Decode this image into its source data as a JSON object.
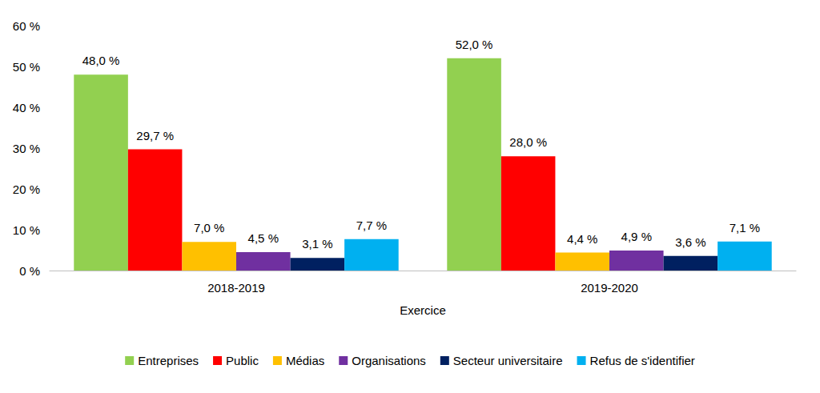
{
  "chart_data": {
    "type": "bar",
    "x_label": "Exercice",
    "categories": [
      "2018-2019",
      "2019-2020"
    ],
    "series": [
      {
        "name": "Entreprises",
        "color": "#92d050",
        "values": [
          48.0,
          52.0
        ],
        "value_labels": [
          "48,0 %",
          "52,0 %"
        ]
      },
      {
        "name": "Public",
        "color": "#ff0000",
        "values": [
          29.7,
          28.0
        ],
        "value_labels": [
          "29,7 %",
          "28,0 %"
        ]
      },
      {
        "name": "Médias",
        "color": "#ffc000",
        "values": [
          7.0,
          4.4
        ],
        "value_labels": [
          "7,0 %",
          "4,4 %"
        ]
      },
      {
        "name": "Organisations",
        "color": "#7030a0",
        "values": [
          4.5,
          4.9
        ],
        "value_labels": [
          "4,5 %",
          "4,9 %"
        ]
      },
      {
        "name": "Secteur universitaire",
        "color": "#002060",
        "values": [
          3.1,
          3.6
        ],
        "value_labels": [
          "3,1 %",
          "3,6 %"
        ]
      },
      {
        "name": "Refus de s'identifier",
        "color": "#00b0f0",
        "values": [
          7.7,
          7.1
        ],
        "value_labels": [
          "7,7 %",
          "7,1 %"
        ]
      }
    ],
    "ylim": [
      0,
      60
    ],
    "yticks": [
      {
        "value": 0,
        "label": "0 %"
      },
      {
        "value": 10,
        "label": "10 %"
      },
      {
        "value": 20,
        "label": "20 %"
      },
      {
        "value": 30,
        "label": "30 %"
      },
      {
        "value": 40,
        "label": "40 %"
      },
      {
        "value": 50,
        "label": "50 %"
      },
      {
        "value": 60,
        "label": "60 %"
      }
    ],
    "grid": false,
    "legend": "bottom",
    "data_labels": true
  }
}
